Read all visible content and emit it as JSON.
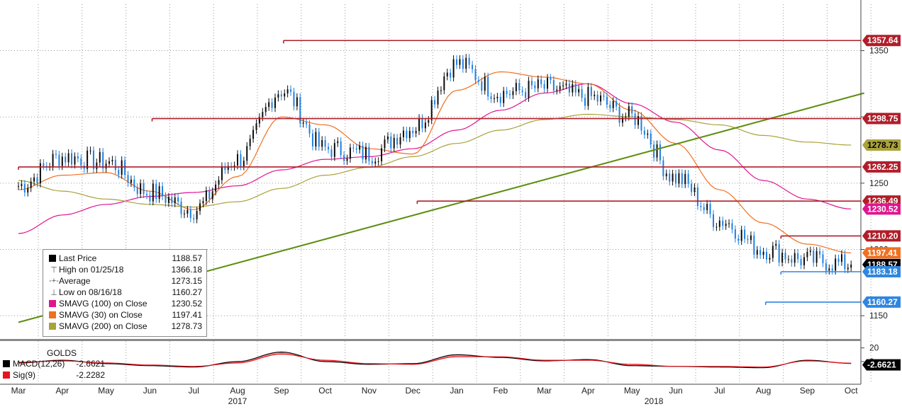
{
  "chart_data": [
    {
      "type": "line",
      "panel": "price",
      "ticker_ylim": [
        1133,
        1385
      ],
      "y_ticks": [
        1150,
        1200,
        1250,
        1300,
        1350
      ],
      "x_months": [
        "Mar",
        "Apr",
        "May",
        "Jun",
        "Jul",
        "Aug",
        "Sep",
        "Oct",
        "Nov",
        "Dec",
        "Jan",
        "Feb",
        "Mar",
        "Apr",
        "May",
        "Jun",
        "Jul",
        "Aug",
        "Sep",
        "Oct"
      ],
      "years": [
        {
          "label": "2017",
          "month_index": 5
        },
        {
          "label": "2018",
          "month_index": 14.5
        }
      ],
      "series": [
        {
          "name": "Last Price",
          "color": "#0b0b0b",
          "style": "candle",
          "monthly_closes": [
            1248,
            1270,
            1266,
            1243,
            1230,
            1268,
            1320,
            1276,
            1272,
            1292,
            1340,
            1318,
            1322,
            1315,
            1300,
            1254,
            1222,
            1200,
            1192,
            1188.57
          ]
        },
        {
          "name": "SMAVG (100)",
          "color": "#e0158f",
          "monthly_values": [
            1212,
            1226,
            1234,
            1240,
            1243,
            1248,
            1260,
            1268,
            1270,
            1276,
            1290,
            1305,
            1318,
            1325,
            1310,
            1296,
            1275,
            1252,
            1238,
            1230.52
          ]
        },
        {
          "name": "SMAVG (30)",
          "color": "#f07020",
          "monthly_values": [
            1245,
            1256,
            1258,
            1244,
            1230,
            1255,
            1300,
            1294,
            1276,
            1272,
            1320,
            1334,
            1330,
            1325,
            1305,
            1280,
            1245,
            1220,
            1204,
            1197.41
          ]
        },
        {
          "name": "SMAVG (200)",
          "color": "#a9a23a",
          "monthly_values": [
            1252,
            1244,
            1238,
            1234,
            1232,
            1236,
            1246,
            1256,
            1262,
            1270,
            1280,
            1290,
            1298,
            1302,
            1300,
            1298,
            1294,
            1286,
            1281,
            1278.73
          ]
        }
      ],
      "lines": [
        {
          "type": "trendline",
          "color": "#5e8e10",
          "from": {
            "x": 0,
            "y": 1145
          },
          "to": {
            "x": 19.3,
            "y": 1318
          }
        },
        {
          "type": "hline",
          "color": "#b01e2a",
          "y": 1357.64,
          "x_start": 6.05,
          "x_end": 19.3
        },
        {
          "type": "hline",
          "color": "#b01e2a",
          "y": 1298.75,
          "x_start": 3.05,
          "x_end": 19.3
        },
        {
          "type": "hline",
          "color": "#b01e2a",
          "y": 1262.25,
          "x_start": 0,
          "x_end": 19.3
        },
        {
          "type": "hline",
          "color": "#b01e2a",
          "y": 1236.49,
          "x_start": 9.1,
          "x_end": 19.3
        },
        {
          "type": "hline",
          "color": "#b01e2a",
          "y": 1210.2,
          "x_start": 17.4,
          "x_end": 19.3
        },
        {
          "type": "hline",
          "color": "#2f86e0",
          "y": 1183.18,
          "x_start": 17.4,
          "x_end": 19.3
        },
        {
          "type": "hline",
          "color": "#2f86e0",
          "y": 1160.27,
          "x_start": 17.05,
          "x_end": 19.3
        }
      ],
      "price_tags": [
        {
          "value": "1357.64",
          "y": 1357.64,
          "bg": "#b01e2a",
          "fg": "light"
        },
        {
          "value": "1298.75",
          "y": 1298.75,
          "bg": "#b01e2a",
          "fg": "light"
        },
        {
          "value": "1278.73",
          "y": 1278.73,
          "bg": "#a9a23a",
          "fg": "dark"
        },
        {
          "value": "1262.25",
          "y": 1262.25,
          "bg": "#b01e2a",
          "fg": "light"
        },
        {
          "value": "1236.49",
          "y": 1236.49,
          "bg": "#b01e2a",
          "fg": "light"
        },
        {
          "value": "1230.52",
          "y": 1230.52,
          "bg": "#e0158f",
          "fg": "light"
        },
        {
          "value": "1210.20",
          "y": 1210.2,
          "bg": "#b01e2a",
          "fg": "light"
        },
        {
          "value": "1197.41",
          "y": 1197.41,
          "bg": "#f07020",
          "fg": "light"
        },
        {
          "value": "1188.57",
          "y": 1188.57,
          "bg": "#000000",
          "fg": "light"
        },
        {
          "value": "1183.18",
          "y": 1183.18,
          "bg": "#2f86e0",
          "fg": "light"
        },
        {
          "value": "1160.27",
          "y": 1160.27,
          "bg": "#2f86e0",
          "fg": "light"
        }
      ]
    },
    {
      "type": "line",
      "panel": "macd",
      "title": "GOLDS",
      "y_ticks": [
        20,
        0
      ],
      "ylim": [
        -30,
        30
      ],
      "series": [
        {
          "name": "MACD(12,26)",
          "color": "#000000",
          "last": -2.6621,
          "monthly_values": [
            -2,
            2,
            -3,
            -6,
            -8,
            0,
            14,
            0,
            -4,
            -3,
            10,
            6,
            1,
            3,
            -6,
            -7,
            -8,
            -9,
            2,
            -2.6621
          ]
        },
        {
          "name": "Sig(9)",
          "color": "#e8141e",
          "last": -2.2282,
          "monthly_values": [
            -1,
            1,
            -2,
            -5,
            -7,
            -2,
            11,
            2,
            -3,
            -4,
            7,
            7,
            2,
            2,
            -4,
            -7,
            -7,
            -8,
            1,
            -2.2282
          ]
        }
      ],
      "price_tags": [
        {
          "value": "-2.6621",
          "y": -2.6621,
          "bg": "#000000",
          "fg": "light"
        }
      ]
    }
  ],
  "legend": {
    "items": [
      {
        "icon": "swatch",
        "color": "#000000",
        "label": "Last Price",
        "value": "1188.57"
      },
      {
        "icon": "high-glyph",
        "glyph": "⊤",
        "label": "High on 01/25/18",
        "value": "1366.18"
      },
      {
        "icon": "avg-glyph",
        "glyph": "-+-",
        "label": "Average",
        "value": "1273.15"
      },
      {
        "icon": "low-glyph",
        "glyph": "⊥",
        "label": "Low on 08/16/18",
        "value": "1160.27"
      },
      {
        "icon": "swatch",
        "color": "#e0158f",
        "label": "SMAVG (100)  on Close",
        "value": "1230.52"
      },
      {
        "icon": "swatch",
        "color": "#f07020",
        "label": "SMAVG (30)  on Close",
        "value": "1197.41"
      },
      {
        "icon": "swatch",
        "color": "#a9a23a",
        "label": "SMAVG (200)  on Close",
        "value": "1278.73"
      }
    ]
  },
  "macd_legend": {
    "title": "GOLDS",
    "items": [
      {
        "color": "#000000",
        "label": "MACD(12,26)",
        "value": "-2.6621"
      },
      {
        "color": "#e8141e",
        "label": "Sig(9)",
        "value": "-2.2282"
      }
    ]
  }
}
